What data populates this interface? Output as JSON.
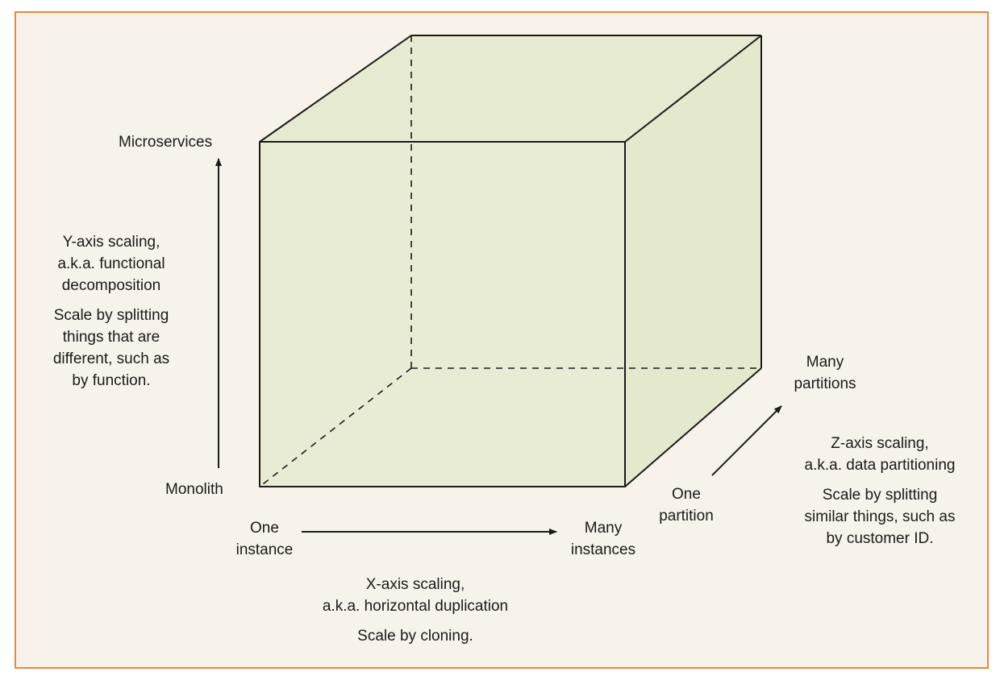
{
  "colors": {
    "frame_border": "#e8883a",
    "background": "#f8f3ea",
    "cube_fill": "#e9ecd5",
    "line": "#1a1a1a"
  },
  "y_axis": {
    "top_label": "Microservices",
    "bottom_label": "Monolith",
    "desc_line1": "Y-axis scaling,",
    "desc_line2": "a.k.a. functional",
    "desc_line3": "decomposition",
    "note_line1": "Scale by splitting",
    "note_line2": "things that are",
    "note_line3": "different, such as",
    "note_line4": "by function."
  },
  "x_axis": {
    "left_label_line1": "One",
    "left_label_line2": "instance",
    "right_label_line1": "Many",
    "right_label_line2": "instances",
    "desc_line1": "X-axis scaling,",
    "desc_line2": "a.k.a. horizontal duplication",
    "note": "Scale by cloning."
  },
  "z_axis": {
    "low_label_line1": "One",
    "low_label_line2": "partition",
    "high_label_line1": "Many",
    "high_label_line2": "partitions",
    "desc_line1": "Z-axis scaling,",
    "desc_line2": "a.k.a. data partitioning",
    "note_line1": "Scale by splitting",
    "note_line2": "similar things, such as",
    "note_line3": "by customer ID."
  }
}
